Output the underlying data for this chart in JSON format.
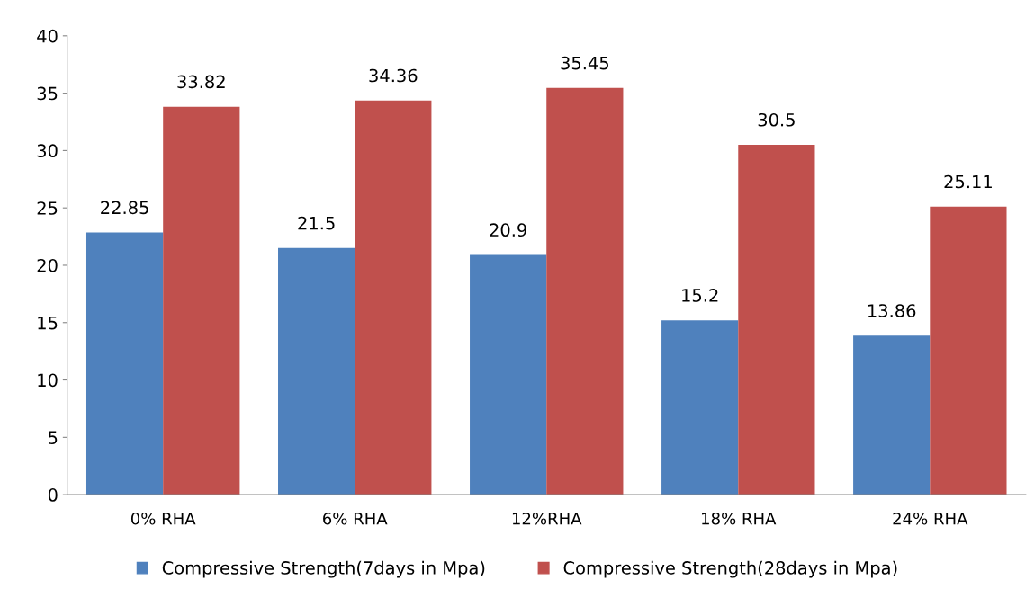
{
  "chart_data": {
    "type": "bar",
    "categories": [
      "0% RHA",
      "6% RHA",
      "12%RHA",
      "18% RHA",
      "24% RHA"
    ],
    "series": [
      {
        "name": "Compressive Strength(7days in Mpa)",
        "color": "#4f81bd",
        "values": [
          22.85,
          21.5,
          20.9,
          15.2,
          13.86
        ]
      },
      {
        "name": "Compressive Strength(28days in Mpa)",
        "color": "#c0504d",
        "values": [
          33.82,
          34.36,
          35.45,
          30.5,
          25.11
        ]
      }
    ],
    "ylim": [
      0,
      40
    ],
    "yticks": [
      0,
      5,
      10,
      15,
      20,
      25,
      30,
      35,
      40
    ],
    "data_labels": true,
    "grid": false,
    "legend": "bottom"
  }
}
